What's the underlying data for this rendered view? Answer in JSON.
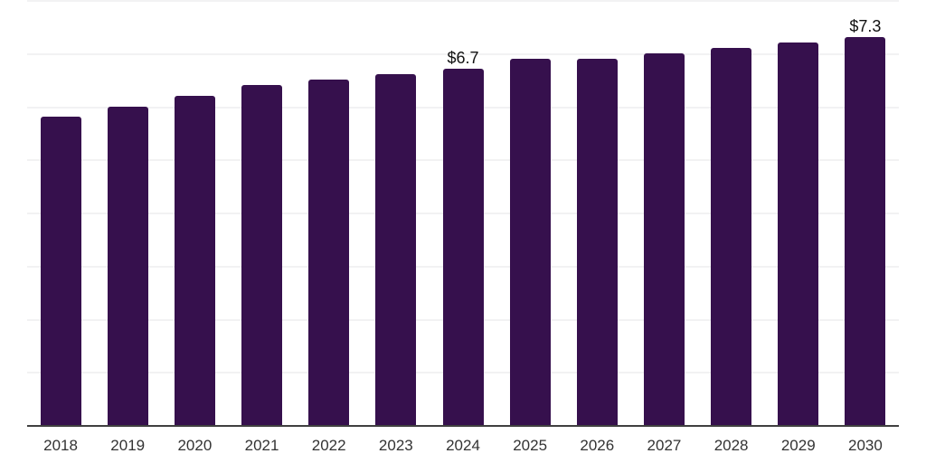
{
  "chart_data": {
    "type": "bar",
    "title": "",
    "xlabel": "",
    "ylabel": "",
    "categories": [
      "2018",
      "2019",
      "2020",
      "2021",
      "2022",
      "2023",
      "2024",
      "2025",
      "2026",
      "2027",
      "2028",
      "2029",
      "2030"
    ],
    "values": [
      5.8,
      6.0,
      6.2,
      6.4,
      6.5,
      6.6,
      6.7,
      6.9,
      6.9,
      7.0,
      7.1,
      7.2,
      7.3
    ],
    "data_labels": {
      "2024": "$6.7",
      "2030": "$7.3"
    },
    "unit_prefix": "$",
    "ylim": [
      0,
      8
    ],
    "gridline_step": 1,
    "grid": true,
    "legend": "none"
  },
  "colors": {
    "bar": "#36104d",
    "gridline": "#f2f2f3",
    "axis": "#404040",
    "tick_label": "#333333",
    "value_label": "#111111",
    "background": "#ffffff"
  }
}
